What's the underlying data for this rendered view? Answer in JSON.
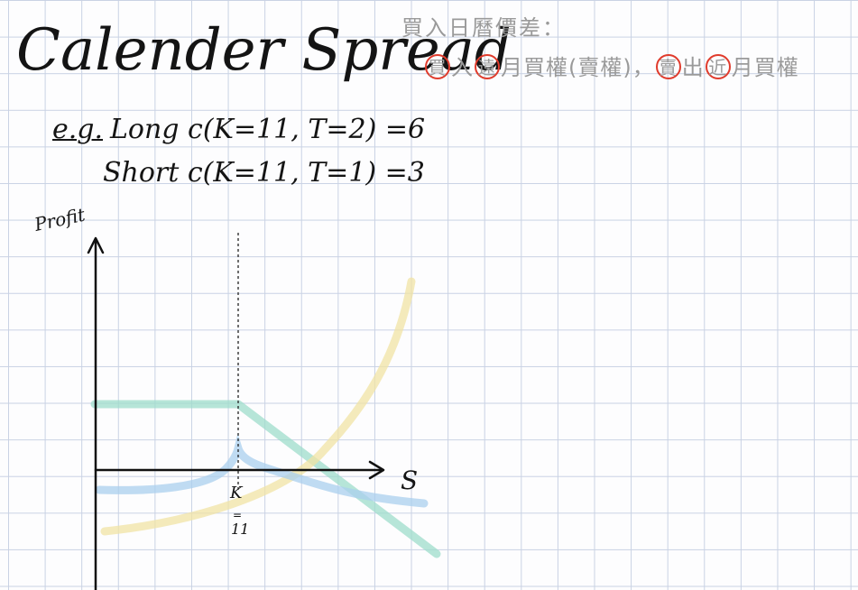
{
  "title": "Calender Spread",
  "subtitle": "買入日曆價差：",
  "description": {
    "parts": [
      {
        "text": "買",
        "circled": true
      },
      {
        "text": "入",
        "circled": false
      },
      {
        "text": "遠",
        "circled": true
      },
      {
        "text": "月買權(賣權)，",
        "circled": false
      },
      {
        "text": "賣",
        "circled": true
      },
      {
        "text": "出",
        "circled": false
      },
      {
        "text": "近",
        "circled": true
      },
      {
        "text": "月買權",
        "circled": false
      }
    ]
  },
  "example": {
    "label": "e.g.",
    "long": "Long c(K=11, T=2) =6",
    "short": "Short c(K=11, T=1) =3"
  },
  "diagram": {
    "y_axis_label": "Profit",
    "x_axis_label": "S",
    "strike_label": "K",
    "strike_value_label": "11",
    "colors": {
      "short_call": "#9ddccb",
      "long_call": "#f0e3a4",
      "spread": "#a9cfee",
      "axis": "#111111",
      "circle": "#e03b2c"
    },
    "curves": [
      {
        "id": "short-call-payoff",
        "shape": "flat then declining after K"
      },
      {
        "id": "long-call-value",
        "shape": "convex increasing"
      },
      {
        "id": "calendar-spread-profit",
        "shape": "peak at K"
      }
    ]
  }
}
